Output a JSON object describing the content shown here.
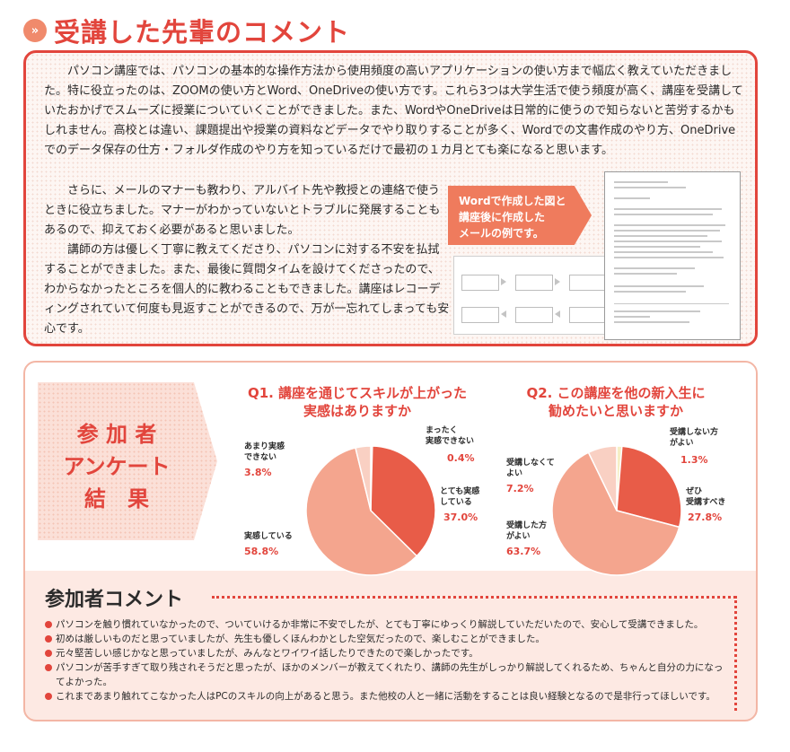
{
  "header": {
    "icon": "»",
    "title": "受講した先輩のコメント"
  },
  "senpai": {
    "p1": "パソコン講座では、パソコンの基本的な操作方法から使用頻度の高いアプリケーションの使い方まで幅広く教えていただきました。特に役立ったのは、ZOOMの使い方とWord、OneDriveの使い方です。これら3つは大学生活で使う頻度が高く、講座を受講していたおかげでスムーズに授業についていくことができました。また、WordやOneDriveは日常的に使うので知らないと苦労するかもしれません。高校とは違い、課題提出や授業の資料などデータでやり取りすることが多く、Wordでの文書作成のやり方、OneDriveでのデータ保存の仕方・フォルダ作成のやり方を知っているだけで最初の１カ月とても楽になると思います。",
    "p2": "さらに、メールのマナーも教わり、アルバイト先や教授との連絡で使うときに役立ちました。マナーがわかっていないとトラブルに発展することもあるので、抑えておく必要があると思いました。",
    "p3": "講師の方は優しく丁寧に教えてくださり、パソコンに対する不安を払拭することができました。また、最後に質問タイムを設けてくださったので、わからなかったところを個人的に教わることもできました。講座はレコーディングされていて何度も見返すことができるので、万が一忘れてしまっても安心です。",
    "tag_lines": [
      "Wordで作成した図と",
      "講座後に作成した",
      "メールの例です。"
    ]
  },
  "survey": {
    "title_lines": [
      "参 加 者",
      "アンケート",
      "結　果"
    ]
  },
  "chart_data": [
    {
      "type": "pie",
      "title": "Q1. 講座を通じてスキルが上がった実感はありますか",
      "title_lines": [
        "Q1. 講座を通じてスキルが上がった",
        "実感はありますか"
      ],
      "labels": [
        "まったく実感できない",
        "とても実感している",
        "実感している",
        "あまり実感できない"
      ],
      "label_lines": [
        [
          "まったく",
          "実感できない"
        ],
        [
          "とても実感",
          "している"
        ],
        [
          "実感している"
        ],
        [
          "あまり実感",
          "できない"
        ]
      ],
      "values": [
        0.4,
        37.0,
        58.8,
        3.8
      ],
      "value_labels": [
        "0.4%",
        "37.0%",
        "58.8%",
        "3.8%"
      ],
      "colors": [
        "#f6efc5",
        "#e85c48",
        "#f4a58e",
        "#f9d0c3"
      ]
    },
    {
      "type": "pie",
      "title": "Q2. この講座を他の新入生に勧めたいと思いますか",
      "title_lines": [
        "Q2. この講座を他の新入生に",
        "勧めたいと思いますか"
      ],
      "labels": [
        "受講しない方がよい",
        "ぜひ受講すべき",
        "受講した方がよい",
        "受講しなくてよい"
      ],
      "label_lines": [
        [
          "受講しない方",
          "がよい"
        ],
        [
          "ぜひ",
          "受講すべき"
        ],
        [
          "受講した方",
          "がよい"
        ],
        [
          "受講しなくて",
          "よい"
        ]
      ],
      "values": [
        1.3,
        27.8,
        63.7,
        7.2
      ],
      "value_labels": [
        "1.3%",
        "27.8%",
        "63.7%",
        "7.2%"
      ],
      "colors": [
        "#f6efc5",
        "#e85c48",
        "#f4a58e",
        "#f9d0c3"
      ]
    }
  ],
  "comments": {
    "title": "参加者コメント",
    "items": [
      "パソコンを触り慣れていなかったので、ついていけるか非常に不安でしたが、とても丁寧にゆっくり解説していただいたので、安心して受講できました。",
      "初めは厳しいものだと思っていましたが、先生も優しくほんわかとした空気だったので、楽しむことができました。",
      "元々堅苦しい感じかなと思っていましたが、みんなとワイワイ話したりできたので楽しかったです。",
      "パソコンが苦手すぎて取り残されそうだと思ったが、ほかのメンバーが教えてくれたり、講師の先生がしっかり解説してくれるため、ちゃんと自分の力になってよかった。",
      "これまであまり触れてこなかった人はPCのスキルの向上があると思う。また他校の人と一緒に活動をすることは良い経験となるので是非行ってほしいです。"
    ]
  }
}
